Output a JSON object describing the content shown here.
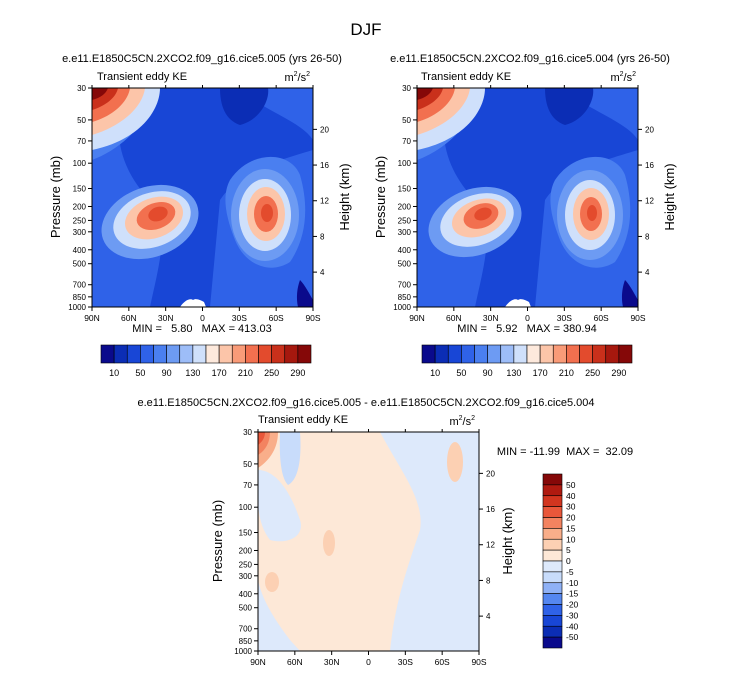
{
  "figure": {
    "title": "DJF"
  },
  "chart_data": [
    {
      "type": "heatmap",
      "id": "p1",
      "title": "e.e11.E1850C5CN.2XCO2.f09_g16.cice5.005 (yrs 26-50)",
      "subtitle_left": "Transient eddy KE",
      "units": {
        "base": "m",
        "exp1": "2",
        "mid": "/s",
        "exp2": "2"
      },
      "ylabel": "Pressure (mb)",
      "y2label": "Height (km)",
      "xticks": [
        "90N",
        "60N",
        "30N",
        "0",
        "30S",
        "60S",
        "90S"
      ],
      "yticks": [
        "30",
        "50",
        "70",
        "100",
        "150",
        "200",
        "250",
        "300",
        "400",
        "500",
        "700",
        "850",
        "1000"
      ],
      "y2ticks": [
        "20",
        "16",
        "12",
        "8",
        "4"
      ],
      "stats": "MIN =   5.80   MAX = 413.03",
      "min": 5.8,
      "max": 413.03,
      "colorbar": {
        "levels": [
          10,
          30,
          50,
          70,
          90,
          110,
          130,
          150,
          170,
          190,
          210,
          230,
          250,
          270,
          290
        ],
        "labels": [
          "10",
          "50",
          "90",
          "130",
          "170",
          "210",
          "250",
          "290"
        ]
      }
    },
    {
      "type": "heatmap",
      "id": "p2",
      "title": "e.e11.E1850C5CN.2XCO2.f09_g16.cice5.004 (yrs 26-50)",
      "subtitle_left": "Transient eddy KE",
      "units": {
        "base": "m",
        "exp1": "2",
        "mid": "/s",
        "exp2": "2"
      },
      "ylabel": "Pressure (mb)",
      "y2label": "Height (km)",
      "xticks": [
        "90N",
        "60N",
        "30N",
        "0",
        "30S",
        "60S",
        "90S"
      ],
      "yticks": [
        "30",
        "50",
        "70",
        "100",
        "150",
        "200",
        "250",
        "300",
        "400",
        "500",
        "700",
        "850",
        "1000"
      ],
      "y2ticks": [
        "20",
        "16",
        "12",
        "8",
        "4"
      ],
      "stats": "MIN =   5.92   MAX = 380.94",
      "min": 5.92,
      "max": 380.94,
      "colorbar": {
        "levels": [
          10,
          30,
          50,
          70,
          90,
          110,
          130,
          150,
          170,
          190,
          210,
          230,
          250,
          270,
          290
        ],
        "labels": [
          "10",
          "50",
          "90",
          "130",
          "170",
          "210",
          "250",
          "290"
        ]
      }
    },
    {
      "type": "heatmap",
      "id": "p3",
      "title": "e.e11.E1850C5CN.2XCO2.f09_g16.cice5.005 - e.e11.E1850C5CN.2XCO2.f09_g16.cice5.004",
      "subtitle_left": "Transient eddy KE",
      "units": {
        "base": "m",
        "exp1": "2",
        "mid": "/s",
        "exp2": "2"
      },
      "ylabel": "Pressure (mb)",
      "y2label": "Height (km)",
      "xticks": [
        "90N",
        "60N",
        "30N",
        "0",
        "30S",
        "60S",
        "90S"
      ],
      "yticks": [
        "30",
        "50",
        "70",
        "100",
        "150",
        "200",
        "250",
        "300",
        "400",
        "500",
        "700",
        "850",
        "1000"
      ],
      "y2ticks": [
        "20",
        "16",
        "12",
        "8",
        "4"
      ],
      "stats": "MIN = -11.99  MAX =  32.09",
      "min": -11.99,
      "max": 32.09,
      "colorbar": {
        "levels": [
          -50,
          -40,
          -30,
          -20,
          -15,
          -10,
          -5,
          0,
          5,
          10,
          15,
          20,
          30,
          40,
          50
        ],
        "labels": [
          "-50",
          "-40",
          "-30",
          "-20",
          "-15",
          "-10",
          "-5",
          "0",
          "5",
          "10",
          "15",
          "20",
          "30",
          "40",
          "50"
        ]
      }
    }
  ],
  "palettes": {
    "absolute": [
      "#0a0a8c",
      "#0b2db5",
      "#1846d6",
      "#2f62e8",
      "#4a7ff0",
      "#6d9bf3",
      "#9dbdf8",
      "#cfe0fb",
      "#fde9dc",
      "#fcc5a9",
      "#f99b78",
      "#f2704f",
      "#e34b2d",
      "#c9301b",
      "#a6180e",
      "#850808"
    ],
    "difference": [
      "#0a0a8c",
      "#0b2db5",
      "#1846d6",
      "#2f62e8",
      "#5587f0",
      "#8fb1f6",
      "#c8dcfb",
      "#dde9fb",
      "#fde8d7",
      "#fcd0b3",
      "#f9ae8a",
      "#f38360",
      "#e9573a",
      "#d2351f",
      "#b01a10",
      "#850808"
    ]
  }
}
